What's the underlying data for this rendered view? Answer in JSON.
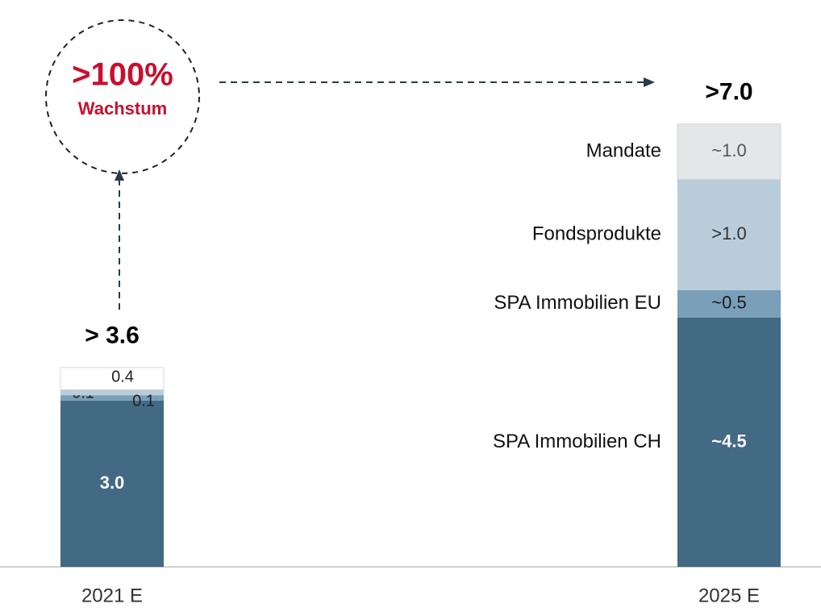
{
  "chart_data": {
    "type": "stacked_bar",
    "categories": [
      "2021 E",
      "2025 E"
    ],
    "series": [
      {
        "name": "SPA Immobilien CH",
        "color": "#426a84",
        "values": [
          3.0,
          4.5
        ],
        "value_labels": [
          "3.0",
          "~4.5"
        ]
      },
      {
        "name": "SPA Immobilien EU",
        "color": "#7a9fb8",
        "values": [
          0.1,
          0.5
        ],
        "value_labels": [
          "0.1",
          "~0.5"
        ]
      },
      {
        "name": "Fondsprodukte",
        "color": "#b8cdd9",
        "values": [
          0.1,
          2.0
        ],
        "value_labels": [
          "0.1",
          ">1.0"
        ]
      },
      {
        "name": "Mandate",
        "color": "#e4e6e8",
        "values": [
          0.4,
          1.0
        ],
        "value_labels": [
          "0.4",
          "~1.0"
        ]
      }
    ],
    "total_labels": [
      "> 3.6",
      ">7.0"
    ],
    "annotation": {
      "value": ">100%",
      "text": "Wachstum"
    },
    "ylim": [
      0,
      9
    ]
  }
}
